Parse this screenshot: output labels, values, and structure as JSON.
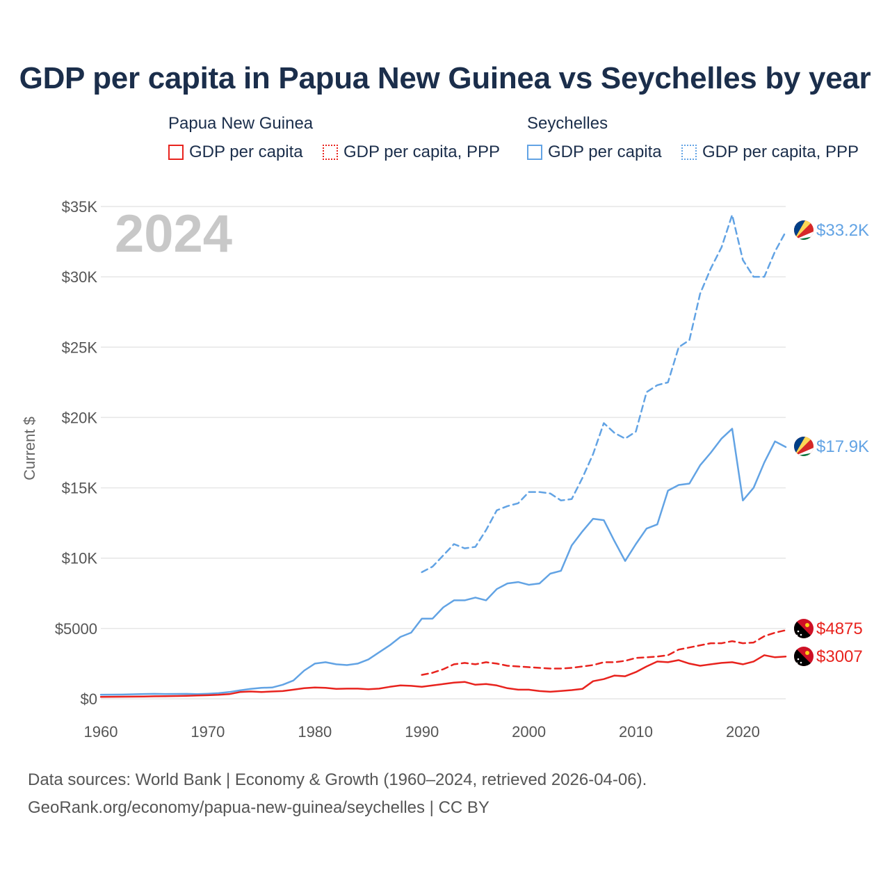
{
  "title": "GDP per capita in Papua New Guinea vs Seychelles by year",
  "legend": {
    "groups": [
      {
        "name": "Papua New Guinea",
        "color": "#e8231e",
        "items": [
          {
            "label": "GDP per capita",
            "style": "solid"
          },
          {
            "label": "GDP per capita, PPP",
            "style": "dotted"
          }
        ]
      },
      {
        "name": "Seychelles",
        "color": "#62a3e4",
        "items": [
          {
            "label": "GDP per capita",
            "style": "solid"
          },
          {
            "label": "GDP per capita, PPP",
            "style": "dotted"
          }
        ]
      }
    ]
  },
  "footer": {
    "line1": "Data sources: World Bank | Economy & Growth (1960–2024, retrieved 2026-04-06).",
    "line2": "GeoRank.org/economy/papua-new-guinea/seychelles | CC BY"
  },
  "chart_data": {
    "type": "line",
    "year_label": "2024",
    "ylabel": "Current $",
    "xlim": [
      1960,
      2024
    ],
    "ylim": [
      0,
      35000
    ],
    "x_ticks": [
      1960,
      1970,
      1980,
      1990,
      2000,
      2010,
      2020
    ],
    "y_ticks": [
      {
        "value": 0,
        "label": "$0"
      },
      {
        "value": 5000,
        "label": "$5000"
      },
      {
        "value": 10000,
        "label": "$10K"
      },
      {
        "value": 15000,
        "label": "$15K"
      },
      {
        "value": 20000,
        "label": "$20K"
      },
      {
        "value": 25000,
        "label": "$25K"
      },
      {
        "value": 30000,
        "label": "$30K"
      },
      {
        "value": 35000,
        "label": "$35K"
      }
    ],
    "series": [
      {
        "name": "Seychelles GDP per capita, PPP",
        "country": "Seychelles",
        "color": "#62a3e4",
        "dash": "dashed",
        "end_label": "$33.2K",
        "x": [
          1990,
          1991,
          1992,
          1993,
          1994,
          1995,
          1996,
          1997,
          1998,
          1999,
          2000,
          2001,
          2002,
          2003,
          2004,
          2005,
          2006,
          2007,
          2008,
          2009,
          2010,
          2011,
          2012,
          2013,
          2014,
          2015,
          2016,
          2017,
          2018,
          2019,
          2020,
          2021,
          2022,
          2023,
          2024
        ],
        "values": [
          9000,
          9400,
          10200,
          11000,
          10700,
          10800,
          12000,
          13400,
          13700,
          13900,
          14700,
          14700,
          14600,
          14100,
          14200,
          15700,
          17400,
          19600,
          18900,
          18500,
          19000,
          21800,
          22300,
          22500,
          25000,
          25500,
          28800,
          30600,
          32100,
          34400,
          31200,
          30000,
          30000,
          31800,
          33200
        ]
      },
      {
        "name": "Seychelles GDP per capita",
        "country": "Seychelles",
        "color": "#62a3e4",
        "dash": "solid",
        "end_label": "$17.9K",
        "x": [
          1960,
          1961,
          1962,
          1963,
          1964,
          1965,
          1966,
          1967,
          1968,
          1969,
          1970,
          1971,
          1972,
          1973,
          1974,
          1975,
          1976,
          1977,
          1978,
          1979,
          1980,
          1981,
          1982,
          1983,
          1984,
          1985,
          1986,
          1987,
          1988,
          1989,
          1990,
          1991,
          1992,
          1993,
          1994,
          1995,
          1996,
          1997,
          1998,
          1999,
          2000,
          2001,
          2002,
          2003,
          2004,
          2005,
          2006,
          2007,
          2008,
          2009,
          2010,
          2011,
          2012,
          2013,
          2014,
          2015,
          2016,
          2017,
          2018,
          2019,
          2020,
          2021,
          2022,
          2023,
          2024
        ],
        "values": [
          290,
          295,
          300,
          320,
          340,
          350,
          340,
          345,
          350,
          330,
          360,
          400,
          480,
          600,
          700,
          780,
          800,
          1000,
          1300,
          2000,
          2500,
          2600,
          2450,
          2400,
          2500,
          2800,
          3300,
          3800,
          4400,
          4700,
          5700,
          5700,
          6500,
          7000,
          7000,
          7200,
          7000,
          7800,
          8200,
          8300,
          8100,
          8200,
          8900,
          9100,
          10900,
          11900,
          12800,
          12700,
          11200,
          9800,
          11000,
          12100,
          12400,
          14800,
          15200,
          15300,
          16600,
          17500,
          18500,
          19200,
          14100,
          15000,
          16800,
          18300,
          17900
        ]
      },
      {
        "name": "Papua New Guinea GDP per capita, PPP",
        "country": "Papua New Guinea",
        "color": "#e8231e",
        "dash": "dashed",
        "end_label": "$4875",
        "x": [
          1990,
          1991,
          1992,
          1993,
          1994,
          1995,
          1996,
          1997,
          1998,
          1999,
          2000,
          2001,
          2002,
          2003,
          2004,
          2005,
          2006,
          2007,
          2008,
          2009,
          2010,
          2011,
          2012,
          2013,
          2014,
          2015,
          2016,
          2017,
          2018,
          2019,
          2020,
          2021,
          2022,
          2023,
          2024
        ],
        "values": [
          1700,
          1850,
          2100,
          2450,
          2550,
          2450,
          2600,
          2500,
          2350,
          2300,
          2250,
          2200,
          2150,
          2150,
          2200,
          2300,
          2400,
          2600,
          2600,
          2700,
          2900,
          2950,
          3000,
          3100,
          3500,
          3650,
          3800,
          3950,
          3950,
          4100,
          3950,
          4000,
          4450,
          4700,
          4875
        ]
      },
      {
        "name": "Papua New Guinea GDP per capita",
        "country": "Papua New Guinea",
        "color": "#e8231e",
        "dash": "solid",
        "end_label": "$3007",
        "x": [
          1960,
          1961,
          1962,
          1963,
          1964,
          1965,
          1966,
          1967,
          1968,
          1969,
          1970,
          1971,
          1972,
          1973,
          1974,
          1975,
          1976,
          1977,
          1978,
          1979,
          1980,
          1981,
          1982,
          1983,
          1984,
          1985,
          1986,
          1987,
          1988,
          1989,
          1990,
          1991,
          1992,
          1993,
          1994,
          1995,
          1996,
          1997,
          1998,
          1999,
          2000,
          2001,
          2002,
          2003,
          2004,
          2005,
          2006,
          2007,
          2008,
          2009,
          2010,
          2011,
          2012,
          2013,
          2014,
          2015,
          2016,
          2017,
          2018,
          2019,
          2020,
          2021,
          2022,
          2023,
          2024
        ],
        "values": [
          140,
          145,
          150,
          155,
          165,
          180,
          190,
          200,
          210,
          230,
          250,
          280,
          330,
          480,
          520,
          480,
          520,
          550,
          650,
          750,
          800,
          780,
          700,
          720,
          720,
          680,
          720,
          850,
          950,
          920,
          850,
          950,
          1050,
          1150,
          1200,
          1000,
          1050,
          950,
          750,
          650,
          650,
          550,
          500,
          560,
          620,
          700,
          1250,
          1400,
          1650,
          1600,
          1900,
          2300,
          2650,
          2600,
          2750,
          2500,
          2350,
          2450,
          2550,
          2600,
          2450,
          2650,
          3100,
          2950,
          3007
        ]
      }
    ]
  }
}
